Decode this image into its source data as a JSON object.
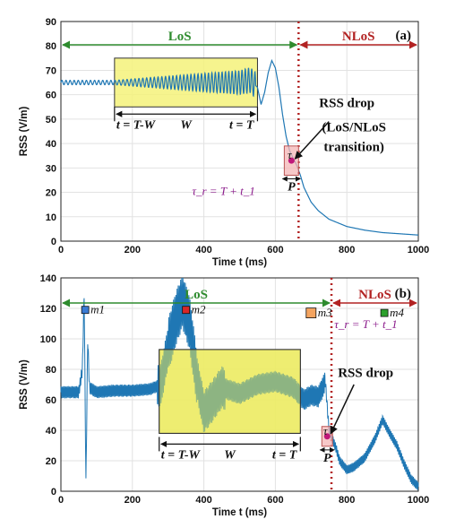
{
  "chart_data": [
    {
      "panel": "(a)",
      "type": "line",
      "xlabel": "Time t (ms)",
      "ylabel": "RSS (V/m)",
      "xlim": [
        0,
        1000
      ],
      "ylim": [
        0,
        90
      ],
      "xticks": [
        "0",
        "200",
        "400",
        "600",
        "800",
        "1000"
      ],
      "yticks": [
        "0",
        "10",
        "20",
        "30",
        "40",
        "50",
        "60",
        "70",
        "80",
        "90"
      ],
      "grid": true,
      "color": "#1f77b4",
      "series": [
        {
          "x": [
            0,
            150,
            200,
            250,
            300,
            350,
            400,
            450,
            500,
            530,
            550,
            560,
            570,
            580,
            590,
            600,
            610,
            620,
            630,
            640,
            650,
            660,
            670,
            680,
            700,
            720,
            750,
            800,
            850,
            900,
            950,
            1000
          ],
          "y": [
            65,
            65,
            65,
            65,
            65,
            65,
            65,
            65,
            65,
            66,
            63,
            56,
            61,
            69,
            74,
            71,
            63,
            52,
            43,
            37,
            34,
            31,
            27,
            22,
            16,
            12.5,
            9,
            6,
            4.5,
            3.5,
            3,
            2.5
          ]
        }
      ],
      "los_label": "LoS",
      "nlos_label": "NLoS",
      "transition_x": 665,
      "window": {
        "start": 150,
        "end": 550,
        "ymin": 55,
        "ymax": 75
      },
      "window_start_label": "t = T-W",
      "window_label": "W",
      "window_end_label": "t = T",
      "drop_title": "RSS drop",
      "drop_sub1": "(LoS/NLoS",
      "drop_sub2": "transition)",
      "tau_label": "τ",
      "tau_eq": "τ_r = T + t_1",
      "p_label": "P",
      "drop_box": {
        "x": 645,
        "y": 33,
        "w": 40,
        "h": 12
      }
    },
    {
      "panel": "(b)",
      "type": "line",
      "xlabel": "Time t (ms)",
      "ylabel": "RSS (V/m)",
      "xlim": [
        0,
        1000
      ],
      "ylim": [
        0,
        140
      ],
      "xticks": [
        "0",
        "200",
        "400",
        "600",
        "800",
        "1000"
      ],
      "yticks": [
        "0",
        "20",
        "40",
        "60",
        "80",
        "100",
        "120",
        "140"
      ],
      "grid": true,
      "color": "#1f77b4",
      "series": [
        {
          "x": [
            0,
            50,
            60,
            65,
            70,
            75,
            80,
            100,
            150,
            200,
            250,
            280,
            300,
            320,
            340,
            360,
            380,
            400,
            420,
            450,
            500,
            550,
            600,
            650,
            680,
            700,
            720,
            740,
            750,
            760,
            770,
            780,
            800,
            820,
            850,
            880,
            900,
            920,
            940,
            960,
            980,
            1000
          ],
          "y": [
            65,
            65,
            80,
            130,
            5,
            100,
            68,
            65,
            66,
            66,
            67,
            70,
            95,
            112,
            125,
            110,
            75,
            52,
            58,
            68,
            64,
            70,
            72,
            68,
            60,
            63,
            62,
            72,
            40,
            34,
            28,
            20,
            14,
            16,
            22,
            35,
            47,
            38,
            30,
            18,
            8,
            3
          ]
        }
      ],
      "los_label": "LoS",
      "nlos_label": "NLoS",
      "transition_x": 757,
      "window": {
        "start": 275,
        "end": 670,
        "ymin": 38,
        "ymax": 93
      },
      "window_start_label": "t = T-W",
      "window_label": "W",
      "window_end_label": "t = T",
      "drop_title": "RSS drop",
      "tau_label": "τ",
      "tau_eq": "τ_r = T + t_1",
      "p_label": "P",
      "drop_box": {
        "x": 745,
        "y": 36,
        "w": 30,
        "h": 13
      },
      "markers": [
        {
          "label": "m1",
          "x": 68,
          "y": 119,
          "color": "#3a7bd5"
        },
        {
          "label": "m2",
          "x": 350,
          "y": 119,
          "color": "#d62728"
        },
        {
          "label": "m3",
          "x": 700,
          "y": 117,
          "color": "#f4a460"
        },
        {
          "label": "m4",
          "x": 905,
          "y": 117,
          "color": "#2ca02c"
        }
      ]
    }
  ]
}
